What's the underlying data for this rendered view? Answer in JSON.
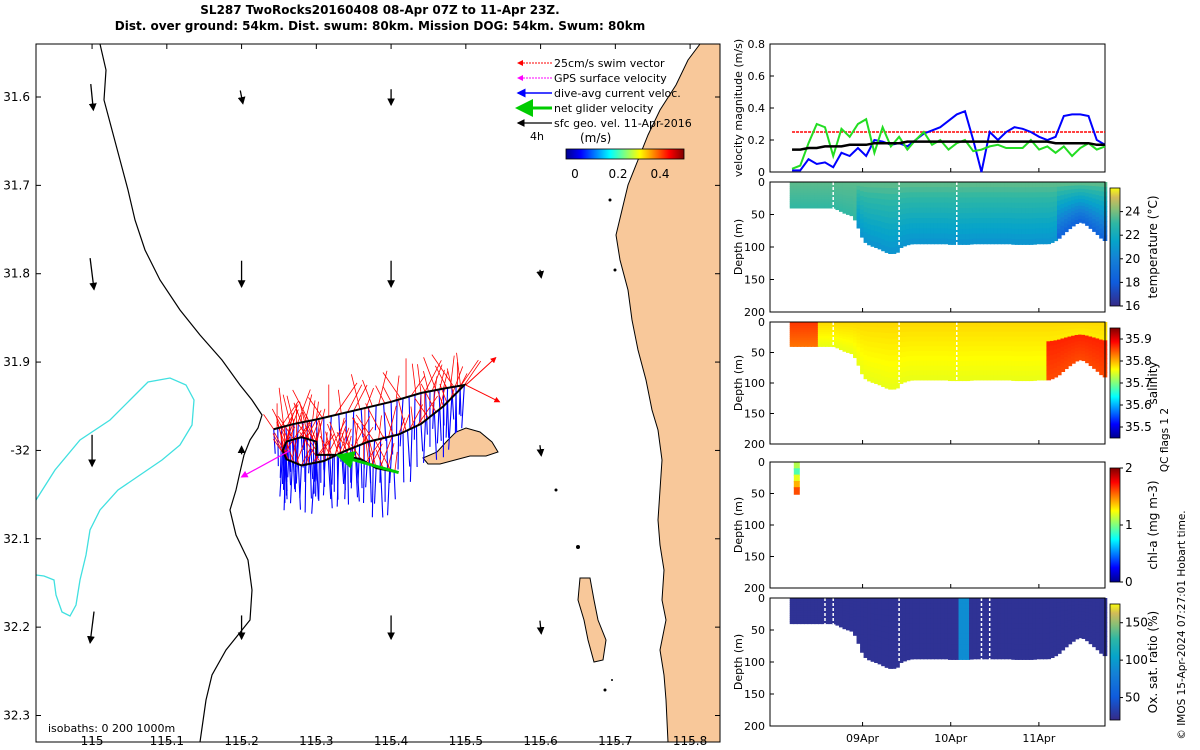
{
  "title": {
    "line1": "SL287 TwoRocks20160408 08-Apr 07Z to 11-Apr 23Z.",
    "line2": "Dist. over ground: 54km. Dist. swum: 80km. Mission DOG: 54km. Swum: 80km"
  },
  "colors": {
    "land": "#f8c89a",
    "coast": "#000000",
    "isobath_200": "#000000",
    "isobath_1000": "#40e0e0",
    "swim_vec": "#ff0000",
    "gps_vec": "#ff00ff",
    "dive_current": "#0000ff",
    "net_velocity": "#00cc00",
    "sfc_geo": "#000000"
  },
  "map": {
    "xlim": [
      114.925,
      115.84
    ],
    "ylim": [
      -32.33,
      -31.54
    ],
    "x_ticks": [
      115,
      115.1,
      115.2,
      115.3,
      115.4,
      115.5,
      115.6,
      115.7,
      115.8
    ],
    "x_tick_labels": [
      "115",
      "115.1",
      "115.2",
      "115.3",
      "115.4",
      "115.5",
      "115.6",
      "115.7",
      "115.8"
    ],
    "y_ticks": [
      -31.6,
      -31.7,
      -31.8,
      -31.9,
      -32.0,
      -32.1,
      -32.2,
      -32.3
    ],
    "y_tick_labels": [
      "31.6",
      "31.7",
      "31.8",
      "31.9",
      "-32",
      "32.1",
      "32.2",
      "32.3"
    ],
    "legend": [
      {
        "key": "swim",
        "label": "25cm/s swim vector"
      },
      {
        "key": "gps",
        "label": "GPS surface velocity"
      },
      {
        "key": "dive",
        "label": "dive-avg current veloc."
      },
      {
        "key": "net",
        "label": "net glider velocity"
      },
      {
        "key": "geo",
        "label": "sfc geo. vel. 11-Apr-2016"
      }
    ],
    "legend_4h": "4h",
    "colorbar_label": "(m/s)",
    "colorbar_ticks": [
      "0",
      "0.2",
      "0.4"
    ],
    "colorbar_range": [
      0,
      0.5
    ],
    "isobaths_text": "isobaths: 0   200  1000m",
    "geo_vectors": [
      {
        "lon": 115.0,
        "lat": -31.6,
        "u": 0.02,
        "v": -0.2
      },
      {
        "lon": 115.2,
        "lat": -31.6,
        "u": 0.02,
        "v": -0.1
      },
      {
        "lon": 115.4,
        "lat": -31.6,
        "u": 0.0,
        "v": -0.12
      },
      {
        "lon": 115.0,
        "lat": -31.8,
        "u": 0.03,
        "v": -0.24
      },
      {
        "lon": 115.2,
        "lat": -31.8,
        "u": 0.0,
        "v": -0.2
      },
      {
        "lon": 115.4,
        "lat": -31.8,
        "u": 0.0,
        "v": -0.2
      },
      {
        "lon": 115.6,
        "lat": -31.8,
        "u": 0.01,
        "v": -0.06
      },
      {
        "lon": 115.0,
        "lat": -32.0,
        "u": 0.0,
        "v": -0.24
      },
      {
        "lon": 115.2,
        "lat": -32.0,
        "u": 0.0,
        "v": 0.06
      },
      {
        "lon": 115.6,
        "lat": -32.0,
        "u": 0.01,
        "v": -0.08
      },
      {
        "lon": 115.0,
        "lat": -32.2,
        "u": -0.03,
        "v": -0.24
      },
      {
        "lon": 115.2,
        "lat": -32.2,
        "u": 0.0,
        "v": -0.18
      },
      {
        "lon": 115.4,
        "lat": -32.2,
        "u": 0.0,
        "v": -0.18
      },
      {
        "lon": 115.6,
        "lat": -32.2,
        "u": 0.01,
        "v": -0.1
      }
    ],
    "track": [
      [
        115.243,
        -31.976
      ],
      [
        115.27,
        -31.97
      ],
      [
        115.3,
        -31.965
      ],
      [
        115.35,
        -31.955
      ],
      [
        115.4,
        -31.945
      ],
      [
        115.44,
        -31.935
      ],
      [
        115.47,
        -31.93
      ],
      [
        115.498,
        -31.926
      ],
      [
        115.47,
        -31.95
      ],
      [
        115.44,
        -31.97
      ],
      [
        115.41,
        -31.982
      ],
      [
        115.37,
        -31.99
      ],
      [
        115.34,
        -32.0
      ],
      [
        115.31,
        -32.012
      ],
      [
        115.28,
        -32.017
      ],
      [
        115.26,
        -32.01
      ],
      [
        115.255,
        -32.0
      ],
      [
        115.26,
        -31.99
      ],
      [
        115.28,
        -31.985
      ],
      [
        115.3,
        -31.99
      ],
      [
        115.3,
        -32.005
      ],
      [
        115.33,
        -32.005
      ],
      [
        115.36,
        -32.01
      ],
      [
        115.38,
        -32.02
      ],
      [
        115.41,
        -32.025
      ]
    ],
    "net_vector": {
      "lon": 115.41,
      "lat": -32.025,
      "to_lon": 115.33,
      "to_lat": -32.006
    },
    "gps_vector": {
      "lon": 115.265,
      "lat": -32.0,
      "to_lon": 115.2,
      "to_lat": -32.03
    },
    "last_point_vectors": [
      {
        "lon": 115.5,
        "lat": -31.926,
        "to_lon": 115.54,
        "to_lat": -31.895
      },
      {
        "lon": 115.5,
        "lat": -31.926,
        "to_lon": 115.545,
        "to_lat": -31.945
      }
    ]
  },
  "chart_data": [
    {
      "type": "line",
      "title": "",
      "ylabel": "velocity magnitude (m/s)",
      "ylim": [
        0,
        0.8
      ],
      "xlim": [
        0,
        3.8
      ],
      "y_ticks": [
        "0",
        "0.2",
        "0.4",
        "0.6",
        "0.8"
      ],
      "x": [
        0.0,
        0.1,
        0.2,
        0.3,
        0.4,
        0.5,
        0.6,
        0.7,
        0.8,
        0.9,
        1.0,
        1.1,
        1.2,
        1.3,
        1.4,
        1.5,
        1.6,
        1.7,
        1.8,
        1.9,
        2.0,
        2.1,
        2.2,
        2.3,
        2.4,
        2.5,
        2.6,
        2.7,
        2.8,
        2.9,
        3.0,
        3.1,
        3.2,
        3.3,
        3.4,
        3.5,
        3.6,
        3.7,
        3.8
      ],
      "series": [
        {
          "name": "swim speed",
          "color": "#ff0000",
          "values": [
            0.25,
            0.25,
            0.25,
            0.25,
            0.25,
            0.25,
            0.25,
            0.25,
            0.25,
            0.25,
            0.25,
            0.25,
            0.25,
            0.25,
            0.25,
            0.25,
            0.25,
            0.25,
            0.25,
            0.25,
            0.25,
            0.25,
            0.25,
            0.25,
            0.25,
            0.25,
            0.25,
            0.25,
            0.25,
            0.25,
            0.25,
            0.25,
            0.25,
            0.25,
            0.25,
            0.25,
            0.25,
            0.25,
            0.25
          ]
        },
        {
          "name": "dive-avg current",
          "color": "#0000ff",
          "values": [
            0.01,
            0.01,
            0.08,
            0.05,
            0.06,
            0.03,
            0.12,
            0.1,
            0.15,
            0.1,
            0.2,
            0.19,
            0.17,
            0.18,
            0.16,
            0.2,
            0.24,
            0.26,
            0.28,
            0.32,
            0.36,
            0.38,
            0.2,
            0.0,
            0.25,
            0.2,
            0.25,
            0.28,
            0.27,
            0.25,
            0.22,
            0.2,
            0.22,
            0.35,
            0.36,
            0.36,
            0.35,
            0.2,
            0.17
          ]
        },
        {
          "name": "net glider velocity",
          "color": "#22dd22",
          "values": [
            0.02,
            0.04,
            0.18,
            0.3,
            0.28,
            0.1,
            0.27,
            0.22,
            0.3,
            0.33,
            0.12,
            0.28,
            0.16,
            0.22,
            0.14,
            0.2,
            0.25,
            0.17,
            0.2,
            0.14,
            0.18,
            0.2,
            0.13,
            0.14,
            0.16,
            0.17,
            0.15,
            0.15,
            0.15,
            0.2,
            0.14,
            0.16,
            0.12,
            0.16,
            0.1,
            0.15,
            0.18,
            0.14,
            0.16
          ]
        },
        {
          "name": "sfc geo. velocity",
          "color": "#000000",
          "values": [
            0.14,
            0.14,
            0.15,
            0.15,
            0.16,
            0.16,
            0.16,
            0.17,
            0.17,
            0.17,
            0.18,
            0.18,
            0.18,
            0.18,
            0.19,
            0.19,
            0.19,
            0.19,
            0.19,
            0.19,
            0.19,
            0.19,
            0.19,
            0.19,
            0.19,
            0.19,
            0.19,
            0.19,
            0.19,
            0.19,
            0.19,
            0.19,
            0.18,
            0.18,
            0.18,
            0.18,
            0.18,
            0.17,
            0.17
          ]
        }
      ]
    },
    {
      "type": "heatmap",
      "name": "temperature",
      "ylabel": "Depth (m)",
      "ylim": [
        0,
        200
      ],
      "y_ticks": [
        "0",
        "50",
        "100",
        "150",
        "200"
      ],
      "clabel": "temperature (°C)",
      "clim": [
        16,
        26
      ],
      "c_ticks": [
        "16",
        "18",
        "20",
        "22",
        "24"
      ],
      "profile_start": 0.1,
      "profile_end": 3.8,
      "bottom_depth": [
        40,
        40,
        40,
        40,
        40,
        40,
        40,
        40,
        40,
        40,
        40,
        40,
        42,
        45,
        48,
        50,
        52,
        60,
        75,
        90,
        95,
        98,
        100,
        102,
        105,
        108,
        110,
        110,
        108,
        100,
        98,
        96,
        95,
        95,
        95,
        95,
        95,
        95,
        95,
        95,
        95,
        95,
        96,
        96,
        96,
        96,
        96,
        96,
        95,
        95,
        95,
        95,
        95,
        95,
        95,
        95,
        95,
        95,
        95,
        96,
        96,
        96,
        96,
        96,
        96,
        95,
        95,
        95,
        95,
        93,
        90,
        86,
        80,
        75,
        70,
        66,
        62,
        62,
        65,
        70,
        75,
        80,
        86,
        90
      ],
      "surface_value": 23.6,
      "bottom_value": 20.6,
      "gaps": [
        0.5,
        1.3,
        2.0
      ]
    },
    {
      "type": "heatmap",
      "name": "salinity",
      "ylabel": "Depth (m)",
      "ylim": [
        0,
        200
      ],
      "y_ticks": [
        "0",
        "50",
        "100",
        "150",
        "200"
      ],
      "clabel": "salinity",
      "clim": [
        35.45,
        35.95
      ],
      "c_ticks": [
        "35.5",
        "35.6",
        "35.7",
        "35.8",
        "35.9"
      ],
      "profile_start": 0.1,
      "profile_end": 3.8,
      "surface_value": 35.78,
      "bottom_value": 35.72,
      "gaps": [
        0.5,
        1.3,
        2.0
      ]
    },
    {
      "type": "heatmap",
      "name": "chl-a",
      "ylabel": "Depth (m)",
      "ylim": [
        0,
        200
      ],
      "y_ticks": [
        "0",
        "50",
        "100",
        "150",
        "200"
      ],
      "clabel": "chl-a (mg m-3)",
      "clim": [
        0,
        2
      ],
      "c_ticks": [
        "0",
        "1",
        "2"
      ],
      "profile_start": 0.1,
      "profile_end": 0.2,
      "values_depth": [
        0,
        10,
        20,
        30,
        40
      ],
      "values": [
        1.1,
        0.9,
        1.2,
        1.4,
        1.6
      ]
    },
    {
      "type": "heatmap",
      "name": "oxygen",
      "ylabel": "Depth (m)",
      "ylim": [
        0,
        200
      ],
      "y_ticks": [
        "0",
        "50",
        "100",
        "150",
        "200"
      ],
      "clabel": "Ox. sat. ratio (%)",
      "clim": [
        20,
        175
      ],
      "c_ticks": [
        "50",
        "100",
        "150"
      ],
      "profile_start": 0.1,
      "profile_end": 3.8,
      "surface_value": 25,
      "bottom_value": 25,
      "highlight_x": 2.2,
      "highlight_value": 90,
      "gaps": [
        0.4,
        0.5,
        1.3,
        2.3,
        2.4
      ]
    }
  ],
  "time_axis": {
    "labels": [
      "09Apr",
      "10Apr",
      "11Apr"
    ],
    "positions": [
      0.8,
      1.8,
      2.8
    ]
  },
  "colorbar_side": {
    "flags_label": "QC flags 1  2"
  },
  "footer": {
    "copyright": "© IMOS 15-Apr-2024 07:27:01 Hobart time."
  }
}
